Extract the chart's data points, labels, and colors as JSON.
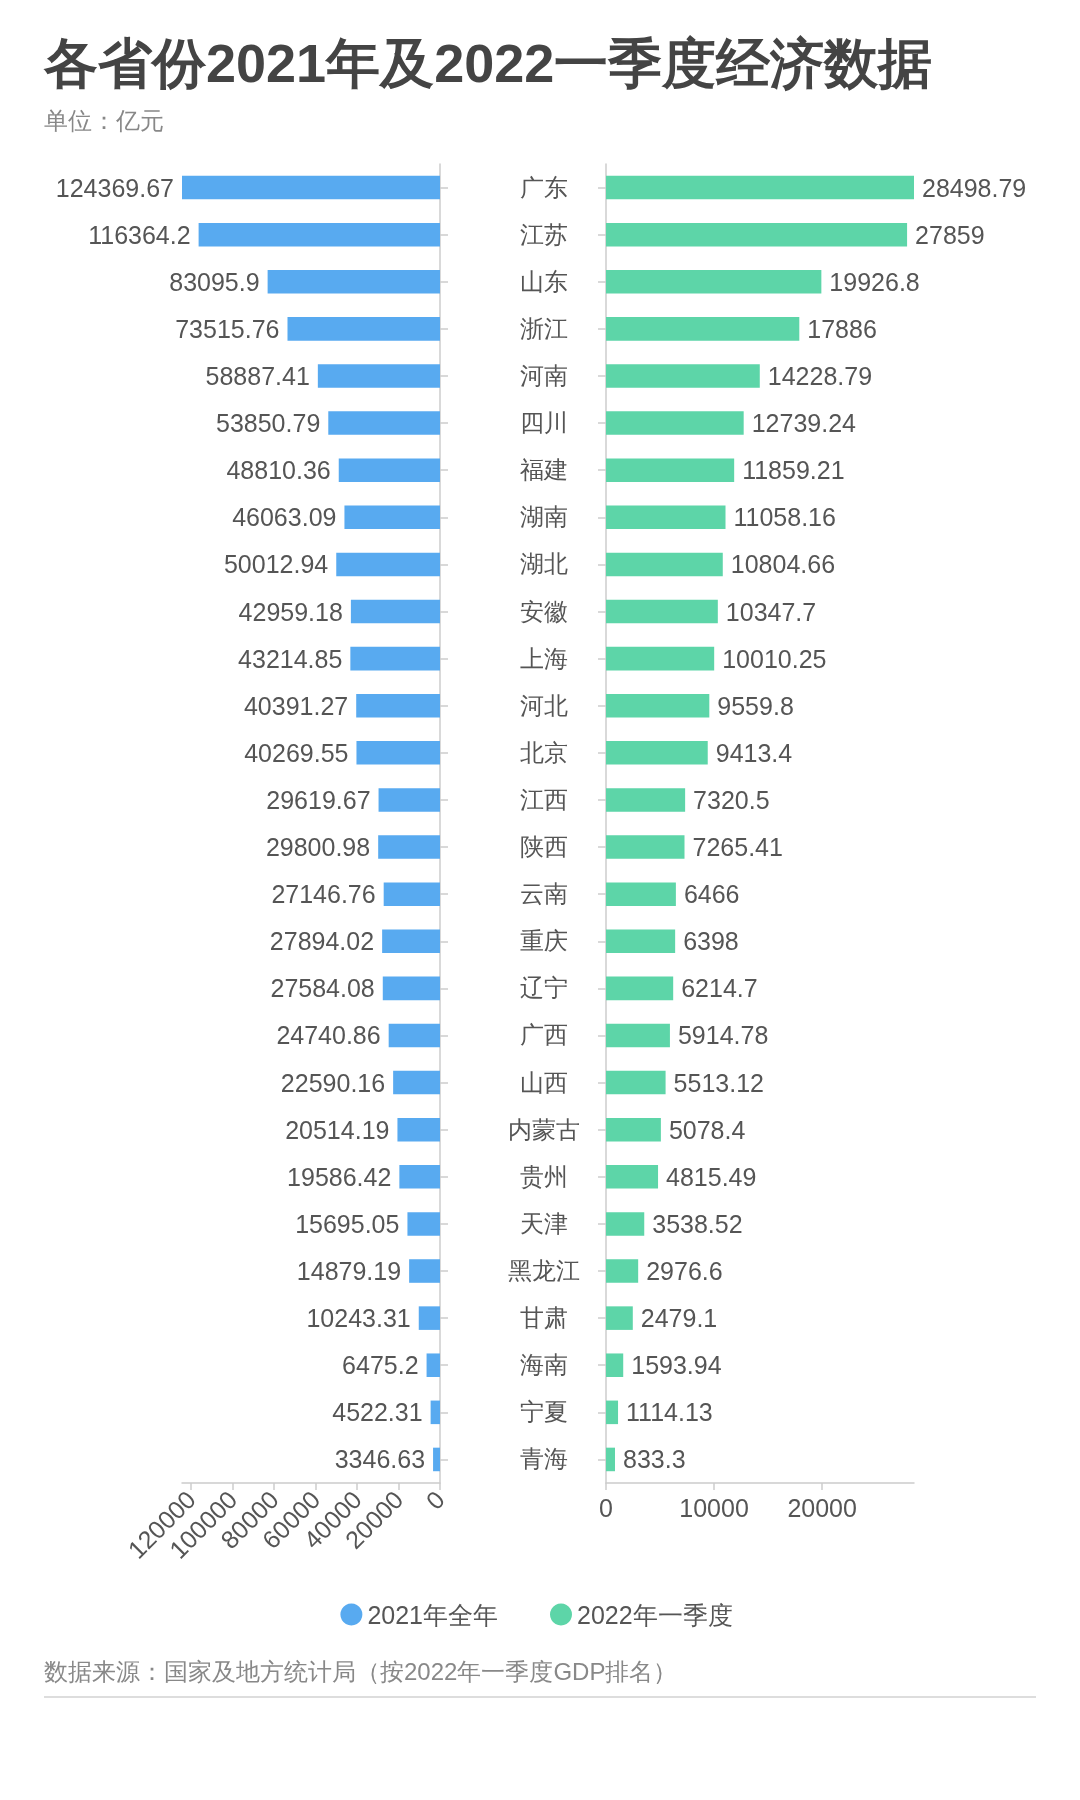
{
  "chart_data": [
    {
      "type": "bar",
      "title": "各省份2021年及2022一季度经济数据",
      "subtitle": "单位：亿元",
      "orientation": "horizontal",
      "categories": [
        null,
        null,
        null,
        null,
        null,
        null,
        null,
        null,
        null,
        null,
        null,
        null,
        null,
        null,
        null,
        null,
        null,
        null,
        null,
        null,
        null,
        null,
        null,
        null,
        null,
        null,
        null,
        null
      ],
      "series": [
        {
          "name": "2021年全年",
          "color": "#58aaf0",
          "values": [
            124369.67,
            116364.2,
            83095.9,
            73515.76,
            58887.41,
            53850.79,
            48810.36,
            46063.09,
            50012.94,
            42959.18,
            43214.85,
            40391.27,
            40269.55,
            29619.67,
            29800.98,
            27146.76,
            27894.02,
            27584.08,
            24740.86,
            22590.16,
            20514.19,
            19586.42,
            15695.05,
            14879.19,
            10243.31,
            6475.2,
            4522.31,
            3346.63
          ]
        }
      ],
      "xlim": [
        124369.67,
        0
      ],
      "xticks": [
        0,
        20000,
        40000,
        60000,
        80000,
        100000,
        120000
      ],
      "data_labels": true,
      "legend": "bottom"
    },
    {
      "type": "bar",
      "orientation": "horizontal",
      "categories": [
        "广东",
        "江苏",
        "山东",
        "浙江",
        "河南",
        "四川",
        "福建",
        "湖南",
        "湖北",
        "安徽",
        "上海",
        "河北",
        "北京",
        "江西",
        "陕西",
        "云南",
        "重庆",
        "辽宁",
        "广西",
        "山西",
        "内蒙古",
        "贵州",
        "天津",
        "黑龙江",
        "甘肃",
        "海南",
        "宁夏",
        "青海"
      ],
      "series": [
        {
          "name": "2022年一季度",
          "color": "#5dd5a8",
          "values": [
            28498.79,
            27859,
            19926.8,
            17886,
            14228.79,
            12739.24,
            11859.21,
            11058.16,
            10804.66,
            10347.7,
            10010.25,
            9559.8,
            9413.4,
            7320.5,
            7265.41,
            6466,
            6398,
            6214.7,
            5914.78,
            5513.12,
            5078.4,
            4815.49,
            3538.52,
            2976.6,
            2479.1,
            1593.94,
            1114.13,
            833.3
          ]
        }
      ],
      "xlim": [
        0,
        28498.79
      ],
      "xticks": [
        0,
        10000,
        20000
      ],
      "data_labels": true,
      "legend": "bottom",
      "annotations": [
        "数据来源：国家及地方统计局（按2022年一季度GDP排名）"
      ]
    }
  ]
}
